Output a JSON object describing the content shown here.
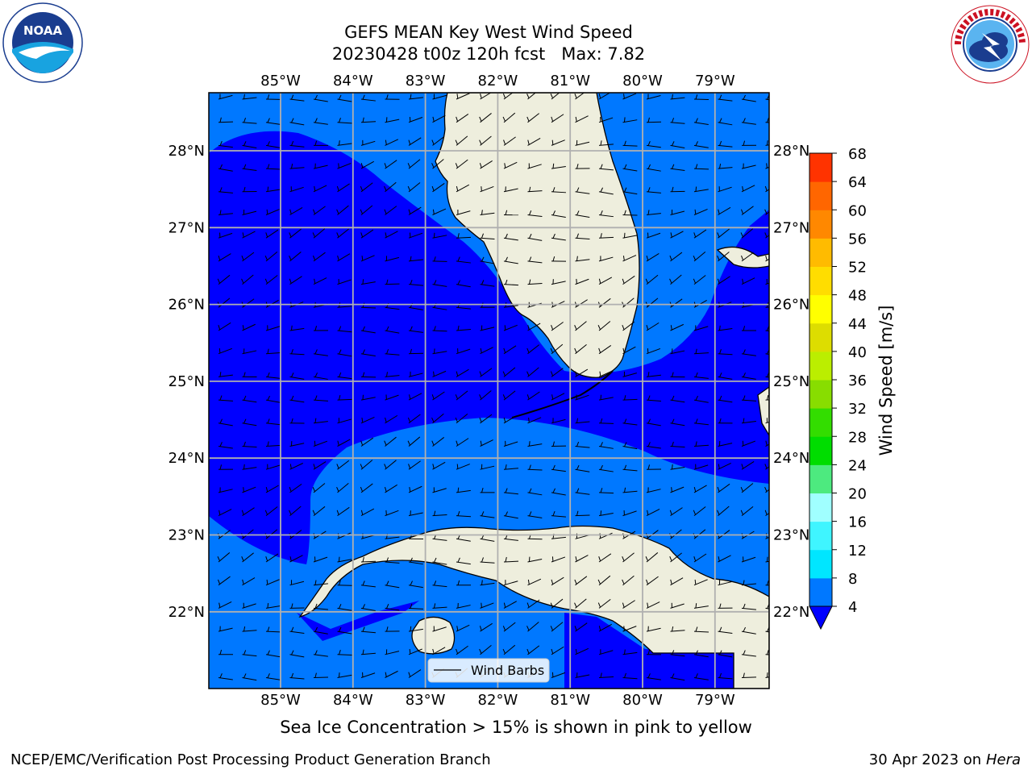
{
  "header": {
    "title_line1": "GEFS MEAN Key West Wind Speed",
    "title_line2": "20230428 t00z 120h fcst   Max: 7.82"
  },
  "logos": {
    "noaa": "NOAA",
    "nws_ring_text": "NATIONAL WEATHER SERVICE"
  },
  "map": {
    "lon_labels": [
      "85°W",
      "84°W",
      "83°W",
      "82°W",
      "81°W",
      "80°W",
      "79°W"
    ],
    "lat_labels": [
      "28°N",
      "27°N",
      "26°N",
      "25°N",
      "24°N",
      "23°N",
      "22°N"
    ],
    "legend_label": "Wind Barbs",
    "colors": {
      "speed_4_8": "#0078ff",
      "speed_0_4": "#0000ff",
      "land": "#eeeedd",
      "gridline": "#b0b0b0"
    }
  },
  "colorbar": {
    "label": "Wind Speed [m/s]",
    "ticks": [
      "4",
      "8",
      "12",
      "16",
      "20",
      "24",
      "28",
      "32",
      "36",
      "40",
      "44",
      "48",
      "52",
      "56",
      "60",
      "64",
      "68"
    ],
    "colors": [
      "#0078ff",
      "#00e6ff",
      "#3ff5ff",
      "#a0ffff",
      "#4dea7f",
      "#00dd00",
      "#33dd00",
      "#88dd00",
      "#bbee00",
      "#dddd00",
      "#ffff00",
      "#ffdd00",
      "#ffbb00",
      "#ff8800",
      "#ff6600",
      "#ff3300",
      "#ff0000"
    ],
    "under_color": "#0000ff"
  },
  "subtitle": "Sea Ice Concentration > 15% is shown in pink to yellow",
  "footer": {
    "left": "NCEP/EMC/Verification Post Processing Product Generation Branch",
    "right_date": "30 Apr 2023 on ",
    "right_machine": "Hera"
  }
}
